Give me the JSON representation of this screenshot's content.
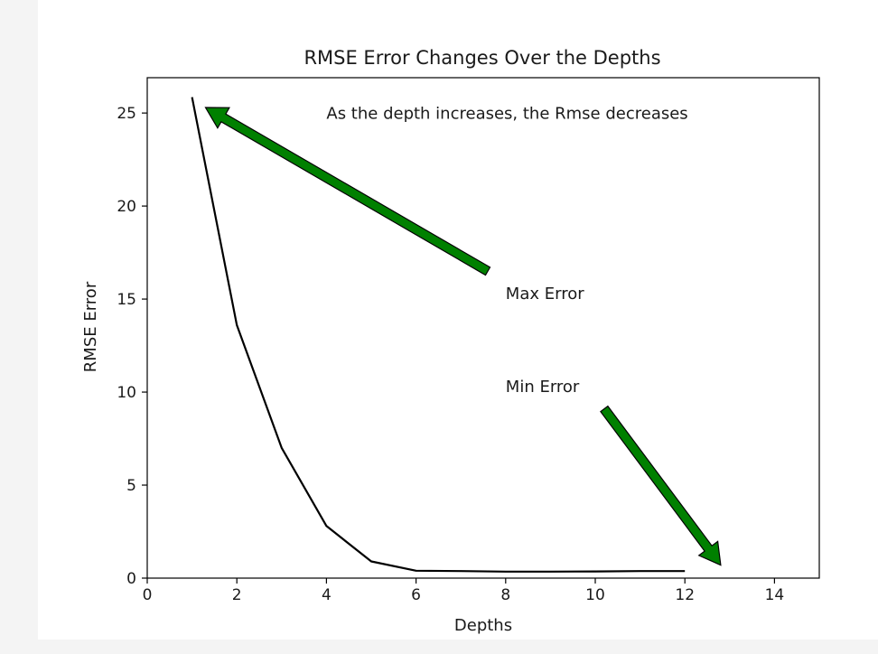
{
  "chart_data": {
    "type": "line",
    "title": "RMSE Error Changes Over the Depths",
    "xlabel": "Depths",
    "ylabel": "RMSE Error",
    "xlim": [
      0,
      15
    ],
    "ylim": [
      0,
      26.9
    ],
    "xticks": [
      "0",
      "2",
      "4",
      "6",
      "8",
      "10",
      "12",
      "14"
    ],
    "yticks": [
      "0",
      "5",
      "10",
      "15",
      "20",
      "25"
    ],
    "grid": false,
    "legend": "none",
    "series": [
      {
        "color": "#000000",
        "x": [
          1,
          2,
          3,
          4,
          5,
          6,
          7,
          8,
          9,
          10,
          11,
          12
        ],
        "y": [
          25.85,
          13.6,
          7.0,
          2.8,
          0.9,
          0.4,
          0.38,
          0.35,
          0.35,
          0.36,
          0.38,
          0.38
        ]
      }
    ],
    "annotations": [
      {
        "id": "max",
        "text": "Max Error",
        "text_x": 8.0,
        "text_y": 15.0,
        "arrow_tail": [
          7.6,
          16.5
        ],
        "arrow_head": [
          1.3,
          25.3
        ],
        "arrow_color": "#008000"
      },
      {
        "id": "min",
        "text": "Min Error",
        "text_x": 8.0,
        "text_y": 10.0,
        "arrow_tail": [
          10.2,
          9.1
        ],
        "arrow_head": [
          12.8,
          0.7
        ],
        "arrow_color": "#008000"
      },
      {
        "id": "note",
        "text": "As the depth increases, the Rmse decreases",
        "text_x": 4.0,
        "text_y": 24.7
      }
    ]
  }
}
